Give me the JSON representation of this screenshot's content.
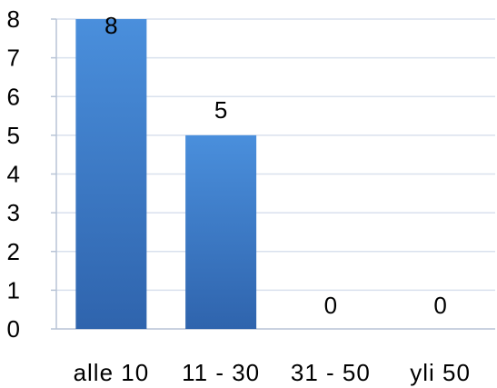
{
  "chart_data": {
    "type": "bar",
    "categories": [
      "alle 10",
      "11 - 30",
      "31 - 50",
      "yli 50"
    ],
    "values": [
      8,
      5,
      0,
      0
    ],
    "data_labels": [
      "8",
      "5",
      "0",
      "0"
    ],
    "title": "",
    "xlabel": "",
    "ylabel": "",
    "ylim": [
      0,
      8
    ],
    "yticks": [
      "0",
      "1",
      "2",
      "3",
      "4",
      "5",
      "6",
      "7",
      "8"
    ],
    "grid": true,
    "legend": "none",
    "colors": {
      "bar_top": "#4a8fdc",
      "bar_bottom": "#2f64ad",
      "grid": "#d9e1ee",
      "axis": "#b8c4d6"
    }
  }
}
